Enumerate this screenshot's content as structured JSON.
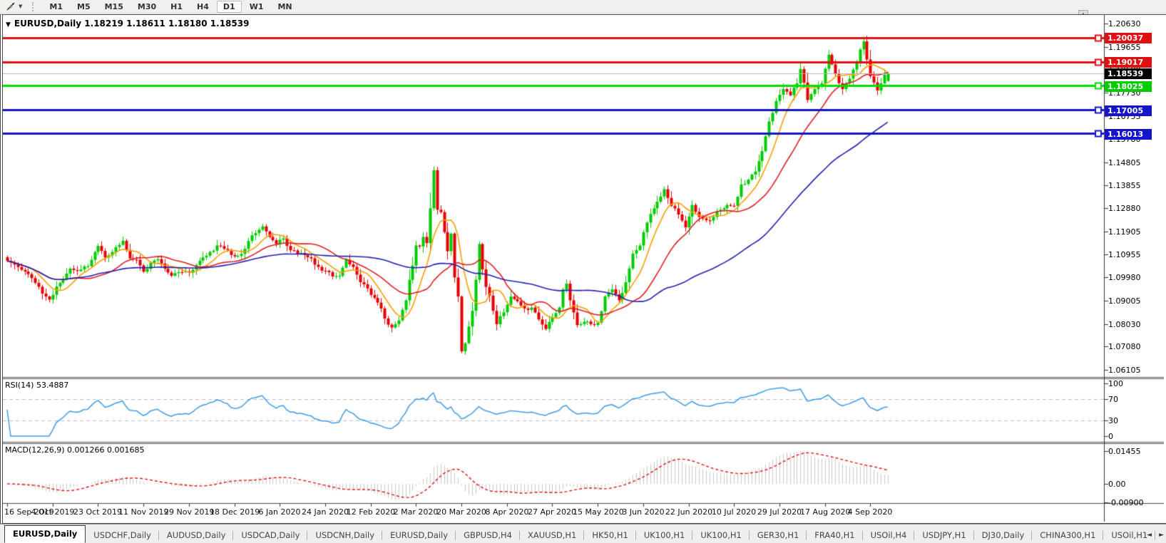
{
  "toolbar": {
    "timeframes": [
      "M1",
      "M5",
      "M15",
      "M30",
      "H1",
      "H4",
      "D1",
      "W1",
      "MN"
    ],
    "active_timeframe": "D1"
  },
  "icons": {
    "dropdown_glyph": "▼",
    "collapse_glyph": "▼",
    "scroll_up_glyph": "▲",
    "tab_scroll_left_glyph": "◄",
    "tab_scroll_right_glyph": "►"
  },
  "chart_data": [
    {
      "type": "candlestick",
      "symbol": "EURUSD",
      "timeframe": "Daily",
      "title_full": "EURUSD,Daily  1.18219 1.18611 1.18180 1.18539",
      "last": {
        "open": 1.18219,
        "high": 1.18611,
        "low": 1.1818,
        "close": 1.18539
      },
      "bars_total": 253,
      "y_ticks": [
        "1.20630",
        "1.19655",
        "1.18680",
        "1.17730",
        "1.16755",
        "1.15780",
        "1.14805",
        "1.13855",
        "1.12880",
        "1.11905",
        "1.10955",
        "1.09980",
        "1.09005",
        "1.08030",
        "1.07080",
        "1.06105"
      ],
      "x_ticks": [
        "16 Sep 2019",
        "4 Oct 2019",
        "23 Oct 2019",
        "11 Nov 2019",
        "29 Nov 2019",
        "18 Dec 2019",
        "6 Jan 2020",
        "24 Jan 2020",
        "12 Feb 2020",
        "2 Mar 2020",
        "20 Mar 2020",
        "8 Apr 2020",
        "27 Apr 2020",
        "15 May 2020",
        "3 Jun 2020",
        "22 Jun 2020",
        "10 Jul 2020",
        "29 Jul 2020",
        "17 Aug 2020",
        "4 Sep 2020"
      ],
      "x_tick_interval_bars": 13,
      "hlines": [
        {
          "label": "1.20037",
          "price": 1.20037,
          "color": "#e01010",
          "width": 3,
          "tag_color": "#e01010"
        },
        {
          "label": "1.19017",
          "price": 1.19017,
          "color": "#e01010",
          "width": 3,
          "tag_color": "#e01010"
        },
        {
          "label": "1.18539",
          "price": 1.18539,
          "color": "#b4b4b4",
          "width": 1,
          "tag_color": "#000000",
          "current": true
        },
        {
          "label": "1.18025",
          "price": 1.18025,
          "color": "#00dd00",
          "width": 3,
          "tag_color": "#00cc00"
        },
        {
          "label": "1.17005",
          "price": 1.17005,
          "color": "#1414cc",
          "width": 3,
          "tag_color": "#1414cc"
        },
        {
          "label": "1.16013",
          "price": 1.16013,
          "color": "#1414cc",
          "width": 3,
          "tag_color": "#1414cc"
        }
      ],
      "moving_averages": [
        {
          "period": 8,
          "color": "#ff9d00"
        },
        {
          "period": 21,
          "color": "#e02020"
        },
        {
          "period": 55,
          "color": "#2020b4"
        }
      ],
      "candle_colors": {
        "up": "#00cc00",
        "down": "#e60000"
      },
      "waypoints": [
        [
          0,
          1.1068
        ],
        [
          2,
          1.1052
        ],
        [
          4,
          1.103
        ],
        [
          6,
          1.1012
        ],
        [
          8,
          1.0975
        ],
        [
          10,
          1.093
        ],
        [
          12,
          1.0905
        ],
        [
          14,
          1.096
        ],
        [
          16,
          1.099
        ],
        [
          18,
          1.1035
        ],
        [
          20,
          1.1025
        ],
        [
          23,
          1.1045
        ],
        [
          26,
          1.113
        ],
        [
          28,
          1.1082
        ],
        [
          31,
          1.1125
        ],
        [
          33,
          1.1152
        ],
        [
          35,
          1.1078
        ],
        [
          37,
          1.1072
        ],
        [
          39,
          1.1022
        ],
        [
          41,
          1.106
        ],
        [
          43,
          1.1075
        ],
        [
          45,
          1.1035
        ],
        [
          47,
          1.1005
        ],
        [
          50,
          1.102
        ],
        [
          52,
          1.1018
        ],
        [
          54,
          1.105
        ],
        [
          56,
          1.1082
        ],
        [
          58,
          1.1105
        ],
        [
          60,
          1.1132
        ],
        [
          62,
          1.1118
        ],
        [
          64,
          1.1092
        ],
        [
          66,
          1.1088
        ],
        [
          68,
          1.1118
        ],
        [
          70,
          1.1175
        ],
        [
          72,
          1.1198
        ],
        [
          73,
          1.1212
        ],
        [
          75,
          1.1168
        ],
        [
          77,
          1.1138
        ],
        [
          79,
          1.1162
        ],
        [
          81,
          1.1112
        ],
        [
          83,
          1.1098
        ],
        [
          85,
          1.1092
        ],
        [
          87,
          1.1078
        ],
        [
          89,
          1.1042
        ],
        [
          91,
          1.1026
        ],
        [
          93,
          1.1002
        ],
        [
          95,
          1.1005
        ],
        [
          97,
          1.1072
        ],
        [
          99,
          1.1042
        ],
        [
          101,
          1.0978
        ],
        [
          103,
          1.0952
        ],
        [
          105,
          1.0912
        ],
        [
          107,
          1.0868
        ],
        [
          109,
          1.08
        ],
        [
          110,
          1.0788
        ],
        [
          112,
          1.0818
        ],
        [
          114,
          1.0902
        ],
        [
          115,
          1.0988
        ],
        [
          116,
          1.1048
        ],
        [
          117,
          1.1132
        ],
        [
          118,
          1.1128
        ],
        [
          119,
          1.1168
        ],
        [
          120,
          1.1142
        ],
        [
          121,
          1.1288
        ],
        [
          122,
          1.1448
        ],
        [
          123,
          1.1282
        ],
        [
          124,
          1.1272
        ],
        [
          125,
          1.1188
        ],
        [
          126,
          1.1108
        ],
        [
          127,
          1.1182
        ],
        [
          128,
          1.0998
        ],
        [
          129,
          1.0918
        ],
        [
          130,
          1.0688
        ],
        [
          131,
          1.0722
        ],
        [
          132,
          1.0792
        ],
        [
          133,
          1.0858
        ],
        [
          134,
          1.0988
        ],
        [
          135,
          1.1138
        ],
        [
          136,
          1.1032
        ],
        [
          137,
          1.0958
        ],
        [
          138,
          1.0922
        ],
        [
          139,
          1.0858
        ],
        [
          140,
          1.0802
        ],
        [
          142,
          1.0852
        ],
        [
          144,
          1.0918
        ],
        [
          146,
          1.0898
        ],
        [
          148,
          1.0868
        ],
        [
          150,
          1.0872
        ],
        [
          152,
          1.0822
        ],
        [
          154,
          1.0782
        ],
        [
          156,
          1.0832
        ],
        [
          158,
          1.0872
        ],
        [
          159,
          1.0948
        ],
        [
          160,
          1.0972
        ],
        [
          161,
          1.0902
        ],
        [
          163,
          1.0798
        ],
        [
          165,
          1.0812
        ],
        [
          167,
          1.0802
        ],
        [
          169,
          1.0808
        ],
        [
          171,
          1.0918
        ],
        [
          173,
          1.0948
        ],
        [
          175,
          1.0902
        ],
        [
          177,
          1.0978
        ],
        [
          179,
          1.1098
        ],
        [
          181,
          1.1132
        ],
        [
          183,
          1.1228
        ],
        [
          185,
          1.1288
        ],
        [
          187,
          1.1338
        ],
        [
          188,
          1.1368
        ],
        [
          190,
          1.1298
        ],
        [
          192,
          1.1262
        ],
        [
          194,
          1.1208
        ],
        [
          196,
          1.1302
        ],
        [
          198,
          1.1252
        ],
        [
          200,
          1.1238
        ],
        [
          202,
          1.1252
        ],
        [
          204,
          1.1282
        ],
        [
          206,
          1.1302
        ],
        [
          208,
          1.1298
        ],
        [
          210,
          1.1388
        ],
        [
          212,
          1.1408
        ],
        [
          214,
          1.1442
        ],
        [
          216,
          1.1528
        ],
        [
          218,
          1.1652
        ],
        [
          220,
          1.1738
        ],
        [
          222,
          1.1788
        ],
        [
          224,
          1.1762
        ],
        [
          226,
          1.1812
        ],
        [
          227,
          1.1872
        ],
        [
          229,
          1.1742
        ],
        [
          231,
          1.1788
        ],
        [
          233,
          1.1812
        ],
        [
          235,
          1.1932
        ],
        [
          237,
          1.1852
        ],
        [
          239,
          1.1788
        ],
        [
          241,
          1.1832
        ],
        [
          243,
          1.1902
        ],
        [
          245,
          1.1988
        ],
        [
          246,
          1.1912
        ],
        [
          247,
          1.1842
        ],
        [
          249,
          1.1782
        ],
        [
          250,
          1.1812
        ],
        [
          251,
          1.1848
        ],
        [
          252,
          1.18539
        ]
      ]
    },
    {
      "type": "line",
      "name": "RSI",
      "label_full": "RSI(14) 53.4887",
      "period": 14,
      "current_value": 53.4887,
      "y_ticks": [
        "100",
        "70",
        "30",
        "0"
      ],
      "levels": [
        70,
        30
      ],
      "color": "#3d9be9",
      "level_color": "#bdbdbd",
      "source": "close"
    },
    {
      "type": "macd",
      "name": "MACD",
      "label_full": "MACD(12,26,9) 0.001266 0.001685",
      "params": [
        12,
        26,
        9
      ],
      "current_main": 0.001266,
      "current_signal": 0.001685,
      "y_ticks": [
        "0.01455",
        "0.00",
        "-0.00900"
      ],
      "histogram_color": "#c6c6c6",
      "signal_color": "#e01010"
    }
  ],
  "tabs": {
    "items": [
      {
        "label": "EURUSD,Daily",
        "active": true
      },
      {
        "label": "USDCHF,Daily",
        "active": false
      },
      {
        "label": "AUDUSD,Daily",
        "active": false
      },
      {
        "label": "USDCAD,Daily",
        "active": false
      },
      {
        "label": "USDCNH,Daily",
        "active": false
      },
      {
        "label": "EURUSD,Daily",
        "active": false
      },
      {
        "label": "GBPUSD,H4",
        "active": false
      },
      {
        "label": "XAUUSD,H1",
        "active": false
      },
      {
        "label": "HK50,H1",
        "active": false
      },
      {
        "label": "UK100,H1",
        "active": false
      },
      {
        "label": "UK100,H1",
        "active": false
      },
      {
        "label": "GER30,H1",
        "active": false
      },
      {
        "label": "FRA40,H1",
        "active": false
      },
      {
        "label": "USOil,H4",
        "active": false
      },
      {
        "label": "USDJPY,H1",
        "active": false
      },
      {
        "label": "DJ30,Daily",
        "active": false
      },
      {
        "label": "CHINA300,H1",
        "active": false
      },
      {
        "label": "USOil,H1",
        "active": false
      }
    ]
  }
}
